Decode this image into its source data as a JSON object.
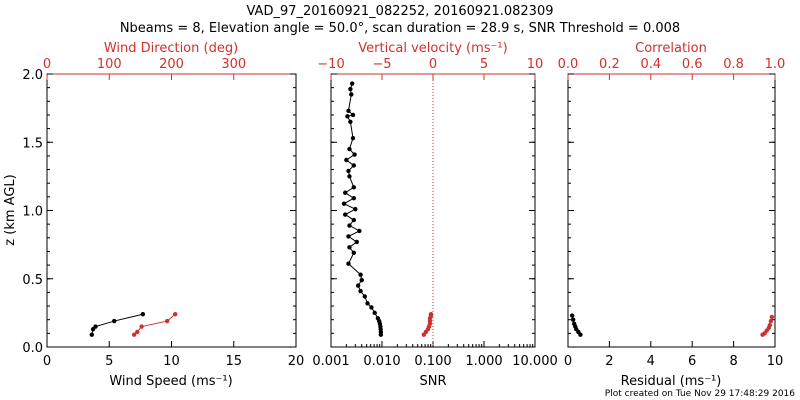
{
  "title_line1": "VAD_97_20160921_082252, 20160921.082309",
  "title_line2": "Nbeams = 8, Elevation angle = 50.0°, scan duration = 28.9 s, SNR Threshold = 0.008",
  "footer": "Plot created on Tue Nov 29 17:48:29 2016",
  "colors": {
    "black": "#000000",
    "red": "#d0312d"
  },
  "chart_data": [
    {
      "type": "line",
      "panel": "wind",
      "ylabel": "z (km AGL)",
      "ylim": [
        0,
        2
      ],
      "yticks": [
        "0.0",
        "0.5",
        "1.0",
        "1.5",
        "2.0"
      ],
      "xlabel": "Wind Speed (ms⁻¹)",
      "xlim": [
        0,
        20
      ],
      "xticks": [
        "0",
        "5",
        "10",
        "15",
        "20"
      ],
      "top_label": "Wind Direction (deg)",
      "top_lim": [
        0,
        400
      ],
      "top_ticks": [
        "0",
        "100",
        "200",
        "300"
      ],
      "series": [
        {
          "name": "Wind Speed",
          "axis": "bottom",
          "color": "#000000",
          "points": [
            [
              3.6,
              0.09
            ],
            [
              3.7,
              0.13
            ],
            [
              3.9,
              0.15
            ],
            [
              5.4,
              0.19
            ],
            [
              7.7,
              0.24
            ]
          ]
        },
        {
          "name": "Wind Direction",
          "axis": "top",
          "color": "#d0312d",
          "points": [
            [
              140,
              0.09
            ],
            [
              145,
              0.11
            ],
            [
              152,
              0.15
            ],
            [
              193,
              0.19
            ],
            [
              206,
              0.24
            ]
          ]
        }
      ]
    },
    {
      "type": "line",
      "panel": "snr",
      "xlabel": "SNR",
      "xlim_log": [
        0.001,
        10
      ],
      "xticks": [
        "0.001",
        "0.010",
        "0.100",
        "1.000",
        "10.000"
      ],
      "top_label": "Vertical velocity (ms⁻¹)",
      "top_lim": [
        -10,
        10
      ],
      "top_ticks": [
        "−10",
        "−5",
        "0",
        "5",
        "10"
      ],
      "series": [
        {
          "name": "SNR",
          "axis": "bottom",
          "color": "#000000",
          "points": [
            [
              0.0095,
              0.09
            ],
            [
              0.0095,
              0.11
            ],
            [
              0.0094,
              0.13
            ],
            [
              0.0093,
              0.15
            ],
            [
              0.0091,
              0.17
            ],
            [
              0.0088,
              0.19
            ],
            [
              0.0083,
              0.21
            ],
            [
              0.0072,
              0.25
            ],
            [
              0.0062,
              0.29
            ],
            [
              0.0052,
              0.32
            ],
            [
              0.0046,
              0.37
            ],
            [
              0.0038,
              0.41
            ],
            [
              0.0034,
              0.45
            ],
            [
              0.004,
              0.49
            ],
            [
              0.0038,
              0.53
            ],
            [
              0.0022,
              0.61
            ],
            [
              0.0028,
              0.69
            ],
            [
              0.0023,
              0.73
            ],
            [
              0.0032,
              0.77
            ],
            [
              0.0022,
              0.81
            ],
            [
              0.0036,
              0.85
            ],
            [
              0.0023,
              0.89
            ],
            [
              0.0028,
              0.93
            ],
            [
              0.0019,
              0.97
            ],
            [
              0.003,
              1.01
            ],
            [
              0.0018,
              1.05
            ],
            [
              0.0028,
              1.09
            ],
            [
              0.0019,
              1.13
            ],
            [
              0.0028,
              1.17
            ],
            [
              0.0023,
              1.25
            ],
            [
              0.0022,
              1.29
            ],
            [
              0.0028,
              1.33
            ],
            [
              0.002,
              1.37
            ],
            [
              0.0029,
              1.41
            ],
            [
              0.0023,
              1.45
            ],
            [
              0.0027,
              1.53
            ],
            [
              0.0024,
              1.65
            ],
            [
              0.0021,
              1.69
            ],
            [
              0.0027,
              1.7
            ],
            [
              0.0022,
              1.73
            ],
            [
              0.0025,
              1.85
            ],
            [
              0.0024,
              1.89
            ],
            [
              0.0026,
              1.93
            ]
          ]
        },
        {
          "name": "Vertical velocity",
          "axis": "top",
          "color": "#d0312d",
          "points": [
            [
              -0.9,
              0.09
            ],
            [
              -0.7,
              0.11
            ],
            [
              -0.5,
              0.13
            ],
            [
              -0.4,
              0.15
            ],
            [
              -0.3,
              0.17
            ],
            [
              -0.3,
              0.19
            ],
            [
              -0.3,
              0.21
            ],
            [
              -0.2,
              0.23
            ],
            [
              -0.2,
              0.24
            ]
          ]
        }
      ],
      "reference_line": {
        "axis": "top",
        "value": 0,
        "color": "#d0312d",
        "style": "dotted"
      }
    },
    {
      "type": "line",
      "panel": "residual",
      "xlabel": "Residual (ms⁻¹)",
      "xlim": [
        0,
        10
      ],
      "xticks": [
        "0",
        "2",
        "4",
        "6",
        "8",
        "10"
      ],
      "top_label": "Correlation",
      "top_lim": [
        0,
        1
      ],
      "top_ticks": [
        "0.0",
        "0.2",
        "0.4",
        "0.6",
        "0.8",
        "1.0"
      ],
      "series": [
        {
          "name": "Residual",
          "axis": "bottom",
          "color": "#000000",
          "points": [
            [
              0.6,
              0.09
            ],
            [
              0.5,
              0.11
            ],
            [
              0.4,
              0.13
            ],
            [
              0.35,
              0.15
            ],
            [
              0.3,
              0.17
            ],
            [
              0.25,
              0.2
            ],
            [
              0.2,
              0.23
            ]
          ]
        },
        {
          "name": "Correlation",
          "axis": "top",
          "color": "#d0312d",
          "points": [
            [
              0.94,
              0.09
            ],
            [
              0.95,
              0.1
            ],
            [
              0.96,
              0.12
            ],
            [
              0.97,
              0.14
            ],
            [
              0.975,
              0.16
            ],
            [
              0.98,
              0.19
            ],
            [
              0.985,
              0.22
            ]
          ]
        }
      ]
    }
  ]
}
